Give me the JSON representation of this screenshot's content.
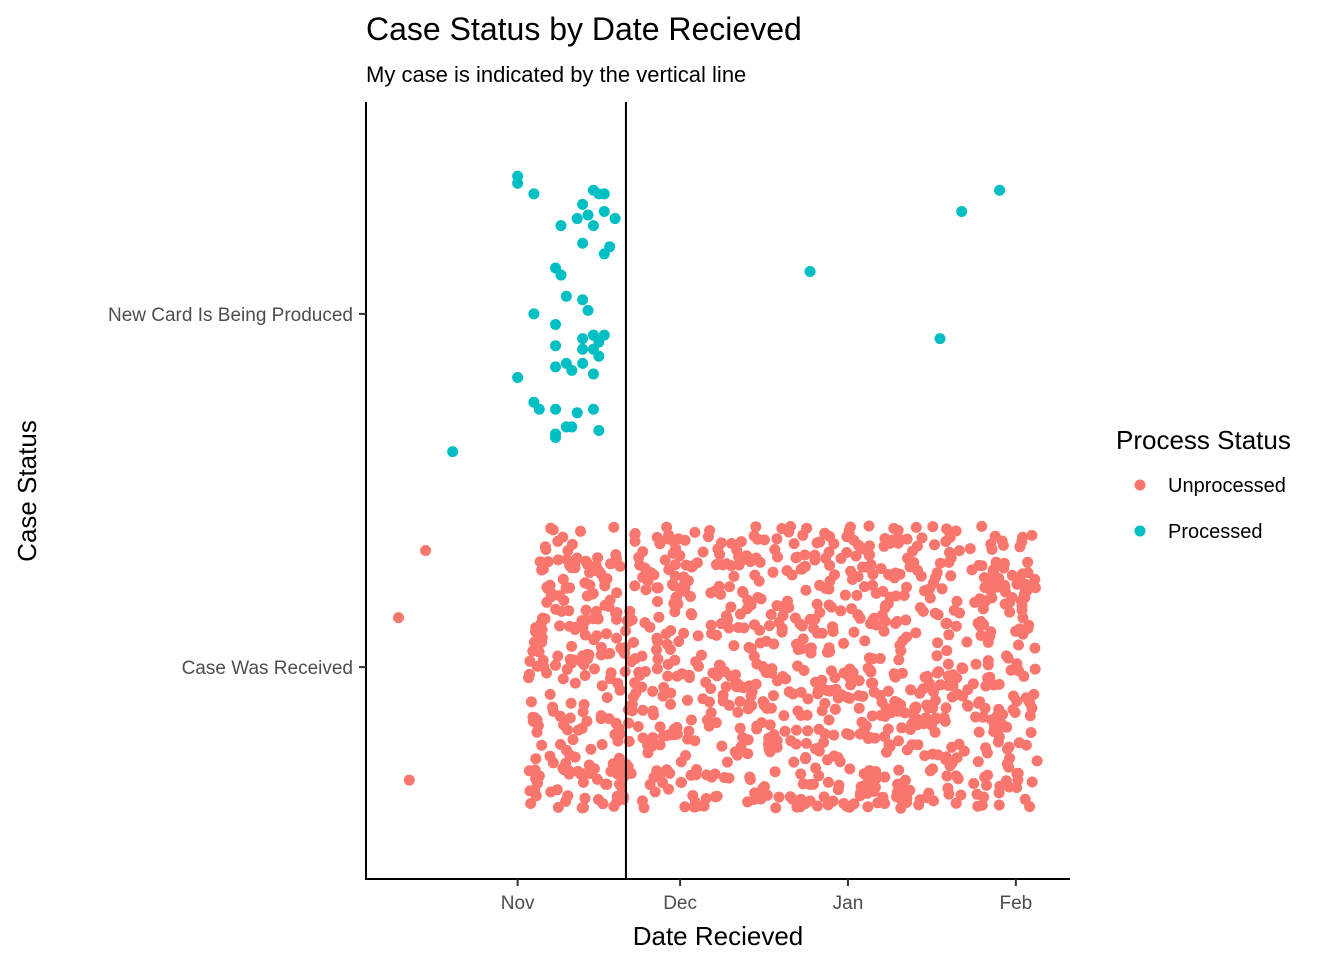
{
  "chart_data": {
    "type": "scatter",
    "title": "Case Status by Date Recieved",
    "subtitle": "My case is indicated by the vertical line",
    "xlabel": "Date Recieved",
    "ylabel": "Case Status",
    "x_is_date": true,
    "xlim": [
      "2017-10-04",
      "2018-02-11"
    ],
    "x_ticks": [
      {
        "date": "2017-11-01",
        "label": "Nov"
      },
      {
        "date": "2017-12-01",
        "label": "Dec"
      },
      {
        "date": "2018-01-01",
        "label": "Jan"
      },
      {
        "date": "2018-02-01",
        "label": "Feb"
      }
    ],
    "categories": [
      "Case Was Received",
      "New Card Is Being Produced"
    ],
    "grid": false,
    "reference_line": {
      "orientation": "vertical",
      "x": "2017-11-21",
      "color": "#000000"
    },
    "legend": {
      "title": "Process Status",
      "position": "right",
      "entries": [
        {
          "label": "Unprocessed",
          "color": "#F8766D"
        },
        {
          "label": "Processed",
          "color": "#00BFC4"
        }
      ]
    },
    "series": [
      {
        "name": "Processed",
        "color": "#00BFC4",
        "category": "New Card Is Being Produced",
        "x_range": [
          "2017-10-20",
          "2018-01-29"
        ],
        "points": [
          {
            "x": "2017-11-01",
            "y_offset": 0.39
          },
          {
            "x": "2017-11-01",
            "y_offset": 0.37
          },
          {
            "x": "2017-11-04",
            "y_offset": 0.34
          },
          {
            "x": "2017-11-15",
            "y_offset": 0.35
          },
          {
            "x": "2017-11-16",
            "y_offset": 0.34
          },
          {
            "x": "2017-11-17",
            "y_offset": 0.34
          },
          {
            "x": "2017-11-13",
            "y_offset": 0.31
          },
          {
            "x": "2017-11-17",
            "y_offset": 0.29
          },
          {
            "x": "2017-11-14",
            "y_offset": 0.28
          },
          {
            "x": "2017-11-19",
            "y_offset": 0.27
          },
          {
            "x": "2017-11-12",
            "y_offset": 0.27
          },
          {
            "x": "2017-11-15",
            "y_offset": 0.25
          },
          {
            "x": "2017-11-09",
            "y_offset": 0.25
          },
          {
            "x": "2017-11-13",
            "y_offset": 0.2
          },
          {
            "x": "2017-11-18",
            "y_offset": 0.19
          },
          {
            "x": "2017-11-17",
            "y_offset": 0.17
          },
          {
            "x": "2017-11-08",
            "y_offset": 0.13
          },
          {
            "x": "2017-11-09",
            "y_offset": 0.11
          },
          {
            "x": "2017-11-10",
            "y_offset": 0.05
          },
          {
            "x": "2017-11-13",
            "y_offset": 0.04
          },
          {
            "x": "2017-11-14",
            "y_offset": 0.01
          },
          {
            "x": "2017-11-04",
            "y_offset": 0.0
          },
          {
            "x": "2017-11-08",
            "y_offset": -0.03
          },
          {
            "x": "2017-11-15",
            "y_offset": -0.06
          },
          {
            "x": "2017-11-17",
            "y_offset": -0.06
          },
          {
            "x": "2017-11-13",
            "y_offset": -0.07
          },
          {
            "x": "2017-11-16",
            "y_offset": -0.08
          },
          {
            "x": "2017-11-08",
            "y_offset": -0.09
          },
          {
            "x": "2017-11-13",
            "y_offset": -0.1
          },
          {
            "x": "2017-11-15",
            "y_offset": -0.1
          },
          {
            "x": "2017-11-16",
            "y_offset": -0.12
          },
          {
            "x": "2017-11-10",
            "y_offset": -0.14
          },
          {
            "x": "2017-11-13",
            "y_offset": -0.14
          },
          {
            "x": "2017-11-08",
            "y_offset": -0.15
          },
          {
            "x": "2017-11-11",
            "y_offset": -0.16
          },
          {
            "x": "2017-11-15",
            "y_offset": -0.17
          },
          {
            "x": "2017-11-01",
            "y_offset": -0.18
          },
          {
            "x": "2017-11-04",
            "y_offset": -0.25
          },
          {
            "x": "2017-11-05",
            "y_offset": -0.27
          },
          {
            "x": "2017-11-08",
            "y_offset": -0.27
          },
          {
            "x": "2017-11-12",
            "y_offset": -0.28
          },
          {
            "x": "2017-11-15",
            "y_offset": -0.27
          },
          {
            "x": "2017-11-10",
            "y_offset": -0.32
          },
          {
            "x": "2017-11-11",
            "y_offset": -0.32
          },
          {
            "x": "2017-11-08",
            "y_offset": -0.34
          },
          {
            "x": "2017-11-16",
            "y_offset": -0.33
          },
          {
            "x": "2017-11-08",
            "y_offset": -0.35
          },
          {
            "x": "2017-10-20",
            "y_offset": -0.39
          },
          {
            "x": "2017-12-25",
            "y_offset": 0.12
          },
          {
            "x": "2018-01-18",
            "y_offset": -0.07
          },
          {
            "x": "2018-01-22",
            "y_offset": 0.29
          },
          {
            "x": "2018-01-29",
            "y_offset": 0.35
          }
        ]
      },
      {
        "name": "Unprocessed",
        "color": "#F8766D",
        "category": "Case Was Received",
        "x_range": [
          "2017-10-08",
          "2018-02-05"
        ],
        "note_points": [
          {
            "x": "2017-10-15",
            "y_offset": 0.33
          },
          {
            "x": "2017-10-10",
            "y_offset": 0.14
          },
          {
            "x": "2017-10-12",
            "y_offset": -0.32
          }
        ]
      }
    ]
  }
}
